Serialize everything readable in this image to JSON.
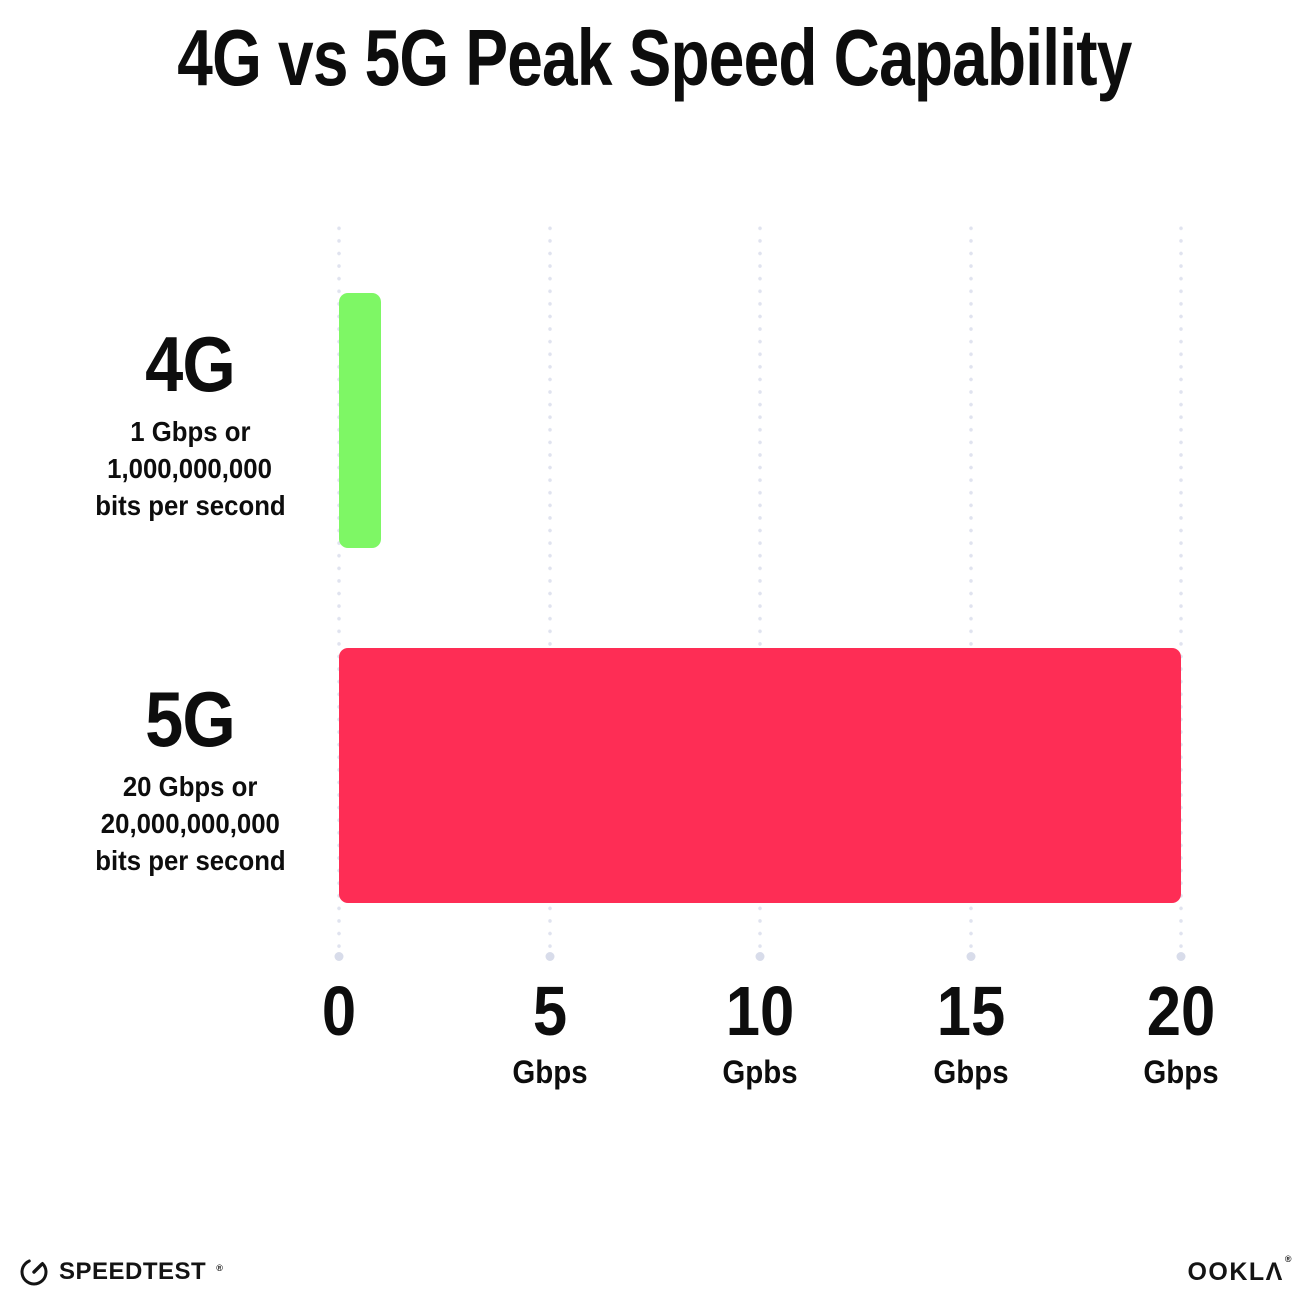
{
  "chart_data": {
    "type": "bar",
    "orientation": "horizontal",
    "title": "4G vs 5G Peak Speed Capability",
    "categories": [
      "4G",
      "5G"
    ],
    "values": [
      1,
      20
    ],
    "unit": "Gbps",
    "bar_colors": [
      "#7EF765",
      "#FE2D55"
    ],
    "category_sublabels": [
      [
        "1 Gbps or",
        "1,000,000,000",
        "bits per second"
      ],
      [
        "20 Gbps or",
        "20,000,000,000",
        "bits per second"
      ]
    ],
    "xlim": [
      0,
      20
    ],
    "x_ticks": [
      {
        "value": 0,
        "label": "0",
        "unit": ""
      },
      {
        "value": 5,
        "label": "5",
        "unit": "Gbps"
      },
      {
        "value": 10,
        "label": "10",
        "unit": "Gpbs"
      },
      {
        "value": 15,
        "label": "15",
        "unit": "Gbps"
      },
      {
        "value": 20,
        "label": "20",
        "unit": "Gbps"
      }
    ],
    "grid": "dotted-vertical-gridlines",
    "legend": "none"
  },
  "colors": {
    "background": "#FFFFFF",
    "text": "#0D0D0D",
    "grid_dot": "#E0E3EF",
    "grid_end_dot": "#D8DCEA",
    "bar_4g": "#7EF765",
    "bar_5g": "#FE2D55"
  },
  "footer": {
    "speedtest_label": "SPEEDTEST",
    "speedtest_mark": "®",
    "ookla_label": "OOKLΛ",
    "ookla_mark": "®"
  }
}
